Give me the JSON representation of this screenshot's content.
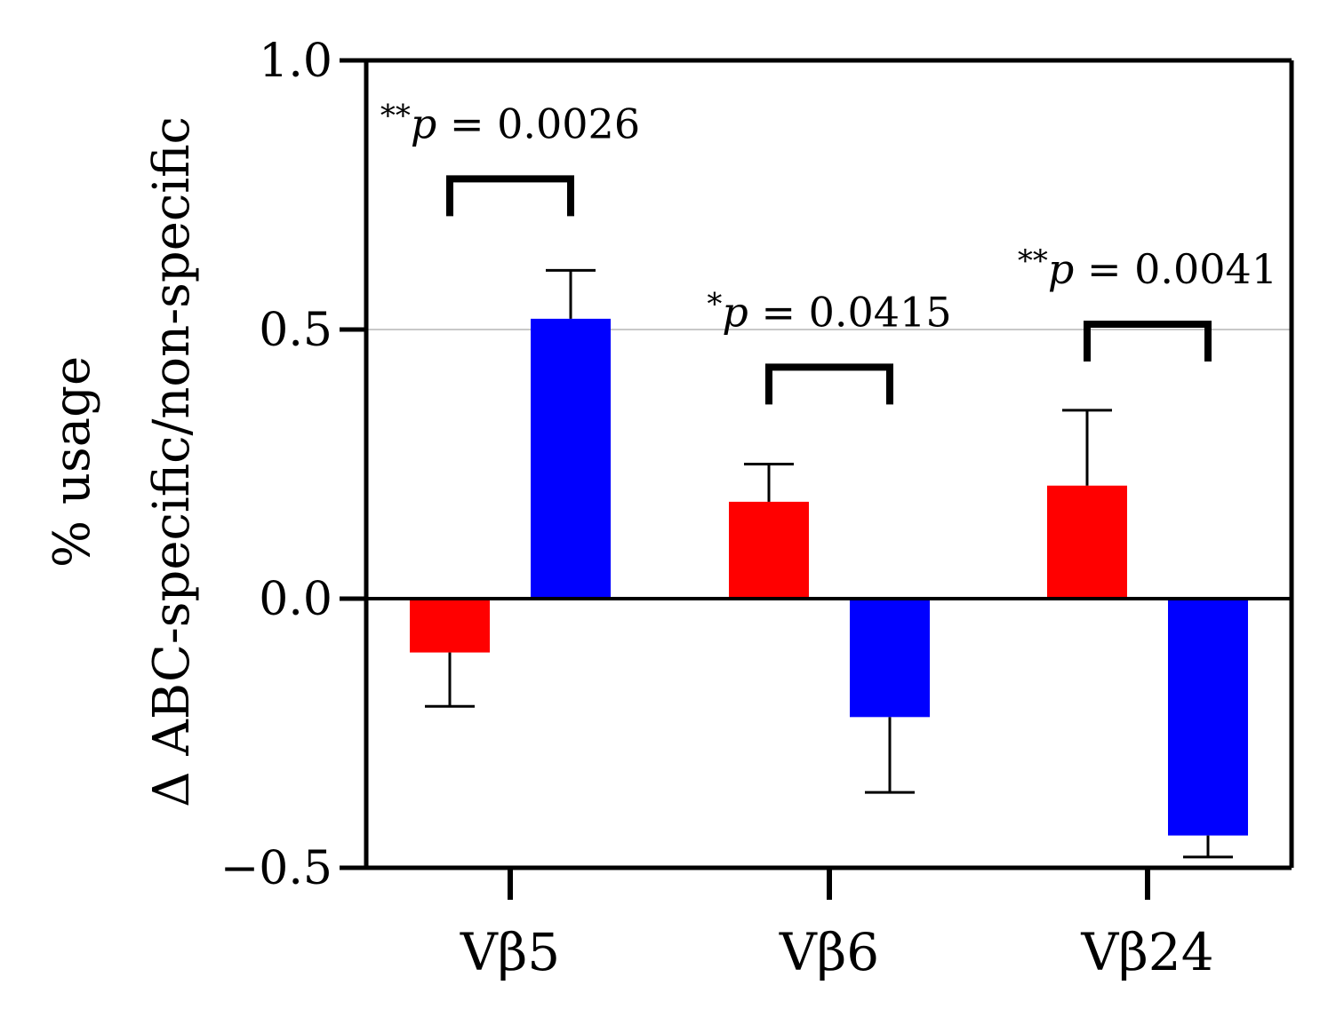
{
  "chart_data": {
    "type": "bar",
    "categories": [
      "Vβ5",
      "Vβ6",
      "Vβ24"
    ],
    "series": [
      {
        "name": "red",
        "color": "#ff0000",
        "values": [
          -0.1,
          0.18,
          0.21
        ],
        "errors": [
          0.1,
          0.07,
          0.14
        ]
      },
      {
        "name": "blue",
        "color": "#0000ff",
        "values": [
          0.52,
          -0.22,
          -0.44
        ],
        "errors": [
          0.09,
          0.14,
          0.04
        ]
      }
    ],
    "ylabel_line1": "% usage",
    "ylabel_line2": "Δ ABC-specific/non-specific",
    "xlabel": "",
    "ylim": [
      -0.5,
      1.0
    ],
    "yticks": [
      "−0.5",
      "0.0",
      "0.5",
      "1.0"
    ],
    "ytick_values": [
      -0.5,
      0.0,
      0.5,
      1.0
    ],
    "reference_line": 0.5,
    "annotations": [
      {
        "category": 0,
        "stars": "**",
        "p_symbol": "p",
        "text": " = 0.0026",
        "bracket_at": 0.78
      },
      {
        "category": 1,
        "stars": "*",
        "p_symbol": "p",
        "text": " = 0.0415",
        "bracket_at": 0.43
      },
      {
        "category": 2,
        "stars": "**",
        "p_symbol": "p",
        "text": " = 0.0041",
        "bracket_at": 0.51
      }
    ]
  }
}
